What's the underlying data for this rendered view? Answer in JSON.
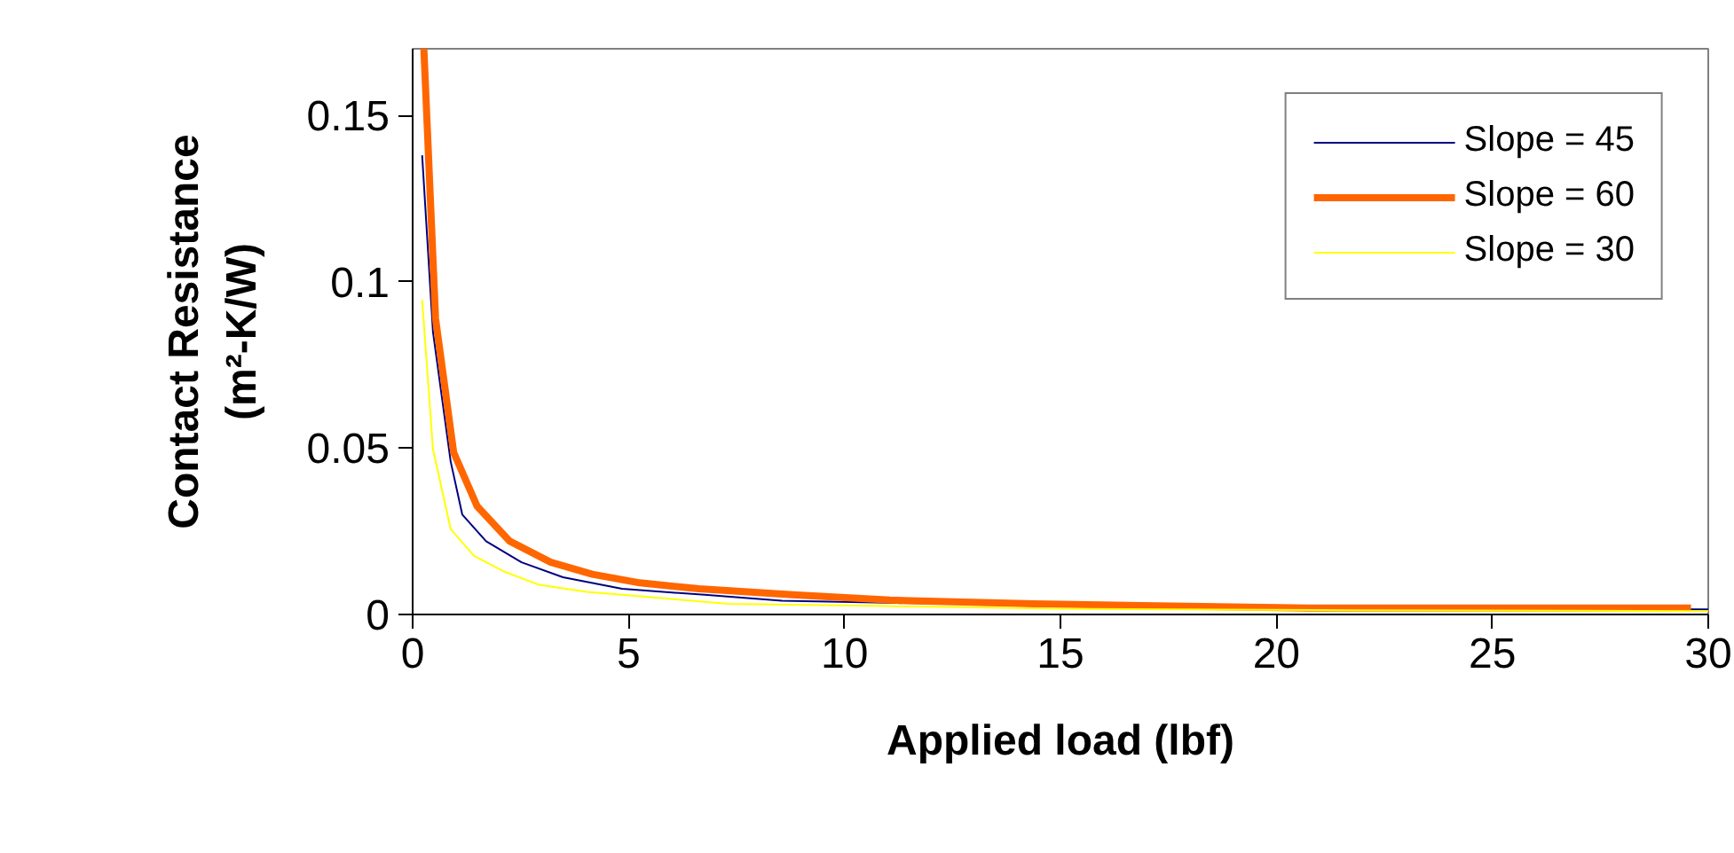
{
  "chart_data": {
    "type": "line",
    "xlabel": "Applied load (lbf)",
    "ylabel": "Contact Resistance\n(m²-K/W)",
    "xlim": [
      0,
      30
    ],
    "ylim": [
      0,
      0.17
    ],
    "xticks": [
      0,
      5,
      10,
      15,
      20,
      25,
      30
    ],
    "yticks": [
      0,
      0.05,
      0.1,
      0.15
    ],
    "grid": false,
    "legend": "top right",
    "marker": "none",
    "line_style": "solid",
    "series": [
      {
        "name": "Slope = 45",
        "color": "#000080",
        "x": [
          0.22,
          0.47,
          0.88,
          1.15,
          1.7,
          2.52,
          3.48,
          4.85,
          6.76,
          8.55,
          11,
          15,
          21,
          30
        ],
        "values": [
          0.138,
          0.085,
          0.046,
          0.03,
          0.022,
          0.0157,
          0.0112,
          0.0077,
          0.0059,
          0.0041,
          0.0035,
          0.0027,
          0.002,
          0.0015
        ]
      },
      {
        "name": "Slope = 60",
        "color": "#ff6600",
        "x": [
          0.26,
          0.33,
          0.53,
          0.95,
          1.49,
          2.25,
          3.2,
          4.16,
          5.26,
          6.63,
          8.8,
          11.05,
          14.4,
          20.75,
          29.6
        ],
        "values": [
          0.17,
          0.149,
          0.089,
          0.0487,
          0.0326,
          0.022,
          0.0157,
          0.0121,
          0.0095,
          0.0077,
          0.0059,
          0.0043,
          0.0032,
          0.0019,
          0.0019
        ]
      },
      {
        "name": "Slope = 30",
        "color": "#ffff00",
        "x": [
          0.22,
          0.47,
          0.88,
          1.42,
          2.1,
          2.93,
          4.03,
          5.4,
          7.3,
          11,
          15,
          21,
          30
        ],
        "values": [
          0.0946,
          0.0497,
          0.0257,
          0.0176,
          0.013,
          0.0089,
          0.0068,
          0.0053,
          0.0032,
          0.0025,
          0.0017,
          0.0013,
          0.001
        ]
      }
    ]
  }
}
